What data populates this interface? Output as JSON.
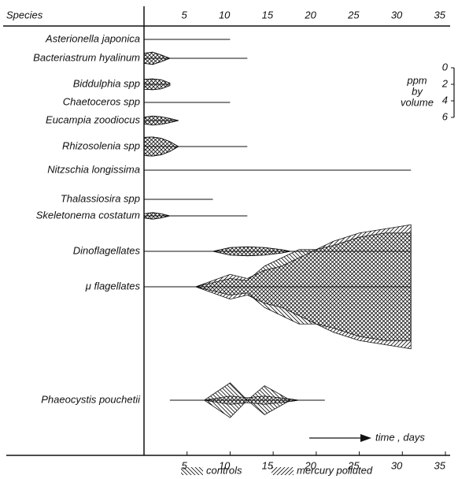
{
  "chart_data": {
    "type": "kite",
    "column_label": "Species",
    "xlim": [
      0,
      35
    ],
    "xticks": [
      5,
      10,
      15,
      20,
      25,
      30,
      35
    ],
    "size_label": [
      "ppm",
      "by",
      "volume"
    ],
    "size_lim": [
      0,
      6
    ],
    "size_ticks": [
      0,
      2,
      4,
      6
    ],
    "annotation": "time , days",
    "series": [
      {
        "name": "controls",
        "pattern": "backslash"
      },
      {
        "name": "mercury polluted",
        "pattern": "slash"
      }
    ],
    "species": [
      {
        "name": "Asterionella japonica",
        "line": [
          0,
          10
        ],
        "days": [
          0
        ],
        "controls": [
          0
        ],
        "mercury": [
          0
        ]
      },
      {
        "name": "Bacteriastrum hyalinum",
        "line": [
          0,
          12
        ],
        "days": [
          0,
          1,
          2,
          3
        ],
        "controls": [
          1.2,
          1.5,
          0.8,
          0
        ],
        "mercury": [
          1.2,
          1.5,
          0.8,
          0
        ]
      },
      {
        "name": "Biddulphia spp",
        "line": [
          0,
          3
        ],
        "days": [
          0,
          1,
          2,
          3
        ],
        "controls": [
          1.2,
          1.3,
          1.1,
          0.3
        ],
        "mercury": [
          1.2,
          1.3,
          1.1,
          0.3
        ]
      },
      {
        "name": "Chaetoceros spp",
        "line": [
          0,
          10
        ],
        "days": [
          0
        ],
        "controls": [
          0
        ],
        "mercury": [
          0
        ]
      },
      {
        "name": "Eucampia zoodiocus",
        "line": [
          0,
          3.5
        ],
        "days": [
          0,
          1,
          2,
          3,
          4
        ],
        "controls": [
          0.8,
          1.1,
          0.9,
          0.5,
          0
        ],
        "mercury": [
          0.8,
          1.1,
          0.9,
          0.5,
          0
        ]
      },
      {
        "name": "Rhizosolenia spp",
        "line": [
          0,
          12
        ],
        "days": [
          0,
          1,
          2,
          3,
          4
        ],
        "controls": [
          2.2,
          2.3,
          2,
          1.2,
          0
        ],
        "mercury": [
          2.2,
          2.3,
          2,
          1.2,
          0
        ]
      },
      {
        "name": "Nitzschia longissima",
        "line": [
          0,
          31
        ],
        "days": [
          0
        ],
        "controls": [
          0
        ],
        "mercury": [
          0
        ]
      },
      {
        "name": "Thalassiosira spp",
        "line": [
          0,
          8
        ],
        "days": [
          0
        ],
        "controls": [
          0
        ],
        "mercury": [
          0
        ]
      },
      {
        "name": "Skeletonema costatum",
        "line": [
          0,
          12
        ],
        "days": [
          0,
          1,
          2,
          3
        ],
        "controls": [
          0.5,
          0.8,
          0.5,
          0
        ],
        "mercury": [
          0.5,
          0.8,
          0.5,
          0
        ]
      },
      {
        "name": "Dinoflagellates",
        "line": [
          0,
          31
        ],
        "days": [
          8,
          10,
          12,
          14,
          16,
          17
        ],
        "controls": [
          0,
          0.9,
          1.1,
          0.9,
          0.4,
          0
        ],
        "mercury": [
          0,
          0.9,
          1.1,
          0.9,
          0.4,
          0
        ]
      },
      {
        "name": "μ flagellates",
        "line": [
          0,
          31
        ],
        "days": [
          6,
          8,
          10,
          12,
          14,
          16,
          18,
          20,
          22,
          25,
          28,
          31
        ],
        "controls": [
          0,
          1,
          2,
          1.5,
          5,
          7,
          9,
          9,
          10,
          12,
          13,
          13
        ],
        "mercury": [
          0,
          1.5,
          3,
          2,
          4,
          5,
          7,
          9,
          11,
          13,
          14,
          15
        ]
      },
      {
        "name": "Phaeocystis pouchetii",
        "line": [
          3,
          21
        ],
        "days": [
          7,
          10,
          12,
          14,
          17,
          18
        ],
        "controls": [
          0,
          4.2,
          0,
          3.5,
          0,
          0
        ],
        "mercury": [
          0,
          1,
          0.6,
          1,
          0.3,
          0
        ]
      }
    ]
  }
}
